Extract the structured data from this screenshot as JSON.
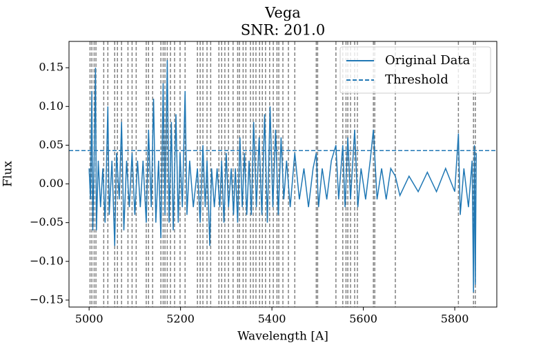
{
  "chart_data": {
    "type": "line",
    "title": "Vega",
    "subtitle": "SNR: 201.0",
    "xlabel": "Wavelength [A]",
    "ylabel": "Flux",
    "xlim": [
      4956,
      5892
    ],
    "ylim": [
      -0.159,
      0.184
    ],
    "xticks": [
      5000,
      5200,
      5400,
      5600,
      5800
    ],
    "yticks": [
      {
        "value": -0.15,
        "label": "−0.15"
      },
      {
        "value": -0.1,
        "label": "−0.10"
      },
      {
        "value": -0.05,
        "label": "−0.05"
      },
      {
        "value": 0,
        "label": "0.00"
      },
      0.05,
      {
        "value": 0.1,
        "label": "0.10"
      },
      0.15
    ],
    "legend": "upper right",
    "x": [
      5000,
      5003,
      5006,
      5008,
      5011,
      5014,
      5016,
      5020,
      5025,
      5030,
      5035,
      5041,
      5044,
      5050,
      5056,
      5060,
      5066,
      5071,
      5076,
      5082,
      5088,
      5094,
      5100,
      5106,
      5112,
      5118,
      5125,
      5130,
      5136,
      5141,
      5146,
      5152,
      5157,
      5162,
      5166,
      5171,
      5175,
      5180,
      5184,
      5190,
      5195,
      5199,
      5204,
      5210,
      5214,
      5220,
      5228,
      5237,
      5243,
      5249,
      5254,
      5258,
      5264,
      5268,
      5274,
      5280,
      5286,
      5290,
      5295,
      5300,
      5305,
      5311,
      5316,
      5320,
      5325,
      5330,
      5335,
      5340,
      5345,
      5350,
      5355,
      5360,
      5366,
      5372,
      5378,
      5384,
      5390,
      5396,
      5402,
      5408,
      5414,
      5420,
      5426,
      5432,
      5440,
      5450,
      5460,
      5470,
      5480,
      5490,
      5497,
      5502,
      5510,
      5520,
      5530,
      5540,
      5546,
      5555,
      5560,
      5566,
      5572,
      5581,
      5588,
      5595,
      5605,
      5615,
      5622,
      5630,
      5640,
      5650,
      5660,
      5670,
      5680,
      5700,
      5720,
      5740,
      5760,
      5780,
      5800,
      5808,
      5812,
      5820,
      5830,
      5838,
      5841,
      5843,
      5845,
      5847
    ],
    "series": [
      {
        "name": "Original Data",
        "color": "#1f77b4",
        "style": "solid",
        "values": [
          0.02,
          -0.02,
          0.12,
          -0.06,
          0.03,
          0.15,
          -0.06,
          0.03,
          -0.03,
          0.02,
          -0.05,
          0.1,
          -0.04,
          0.03,
          -0.08,
          0.04,
          -0.02,
          0.08,
          -0.06,
          0.03,
          -0.03,
          0.04,
          -0.04,
          0.03,
          -0.03,
          0.03,
          -0.05,
          0.07,
          -0.03,
          0.11,
          -0.05,
          0.03,
          -0.07,
          0.13,
          -0.04,
          0.16,
          -0.05,
          0.08,
          -0.06,
          0.09,
          -0.05,
          0.04,
          -0.03,
          0.12,
          -0.04,
          0.03,
          -0.03,
          0.02,
          -0.05,
          0.05,
          -0.03,
          0.03,
          -0.08,
          0.02,
          -0.03,
          0.02,
          -0.03,
          0.03,
          -0.05,
          0.04,
          -0.03,
          0.02,
          -0.04,
          0.02,
          -0.05,
          0.06,
          -0.03,
          0.04,
          -0.04,
          0.03,
          -0.04,
          0.08,
          -0.03,
          0.06,
          -0.04,
          0.09,
          -0.05,
          0.1,
          -0.03,
          0.07,
          -0.04,
          0.06,
          -0.02,
          0.03,
          -0.03,
          0.04,
          -0.02,
          0.02,
          -0.03,
          0.02,
          0.04,
          -0.03,
          0.02,
          -0.02,
          0.03,
          0.05,
          -0.02,
          0.05,
          -0.03,
          0.06,
          -0.02,
          0.07,
          -0.03,
          0.02,
          -0.02,
          0.03,
          0.07,
          -0.02,
          0.02,
          -0.02,
          0.02,
          0.01,
          -0.015,
          0.01,
          -0.01,
          0.015,
          -0.01,
          0.02,
          -0.01,
          0.065,
          -0.04,
          0.02,
          -0.03,
          0.03,
          -0.14,
          0.05,
          -0.13,
          0.04
        ]
      },
      {
        "name": "Threshold",
        "color": "#1f77b4",
        "style": "dashed",
        "value": 0.043
      }
    ],
    "vlines": {
      "color": "#808080",
      "x": [
        5002,
        5006,
        5011,
        5015,
        5032,
        5041,
        5056,
        5062,
        5071,
        5085,
        5094,
        5103,
        5125,
        5130,
        5139,
        5157,
        5162,
        5166,
        5171,
        5178,
        5187,
        5199,
        5210,
        5237,
        5243,
        5249,
        5258,
        5266,
        5284,
        5290,
        5297,
        5305,
        5315,
        5325,
        5329,
        5337,
        5343,
        5353,
        5359,
        5365,
        5373,
        5379,
        5386,
        5395,
        5403,
        5411,
        5415,
        5424,
        5436,
        5450,
        5497,
        5500,
        5540,
        5555,
        5562,
        5566,
        5572,
        5581,
        5587,
        5622,
        5625,
        5670,
        5808,
        5841,
        5845
      ]
    }
  }
}
